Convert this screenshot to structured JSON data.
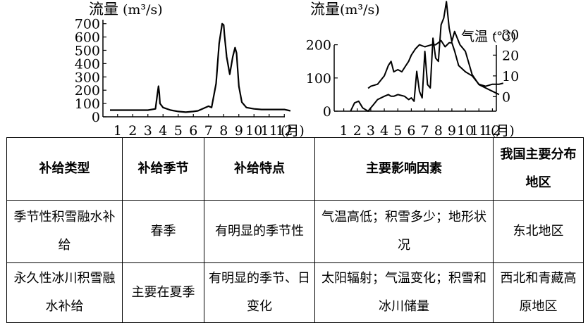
{
  "chart_data": [
    {
      "type": "line",
      "ylabel": "流量",
      "yunit": "(m³/s)",
      "xunit": "(月)",
      "yticks": [
        0,
        100,
        200,
        300,
        400,
        500,
        600,
        700
      ],
      "categories": [
        "1",
        "2",
        "3",
        "4",
        "5",
        "6",
        "7",
        "8",
        "9",
        "10",
        "11",
        "12"
      ],
      "ylim": [
        0,
        730
      ],
      "series": [
        {
          "x": [
            0.5,
            1,
            2,
            3,
            3.5,
            3.6,
            3.7,
            3.75,
            3.8,
            4,
            4.5,
            5,
            5.5,
            6,
            6.3,
            6.5,
            6.8,
            7,
            7.2,
            7.5,
            7.7,
            7.9,
            8,
            8.05,
            8.2,
            8.4,
            8.6,
            8.75,
            8.85,
            9,
            9.2,
            9.5,
            10,
            10.5,
            11,
            11.5,
            12,
            12.4
          ],
          "values": [
            50,
            50,
            50,
            50,
            60,
            150,
            230,
            180,
            100,
            70,
            50,
            40,
            35,
            40,
            45,
            55,
            70,
            80,
            70,
            250,
            550,
            700,
            690,
            620,
            450,
            320,
            450,
            520,
            480,
            230,
            110,
            70,
            60,
            55,
            55,
            55,
            55,
            45
          ]
        }
      ]
    },
    {
      "type": "line",
      "ylabel": "流量",
      "yunit": "(m³/s)",
      "y2label": "气温",
      "y2unit": "(℃)",
      "xunit": "(月)",
      "yticks": [
        0,
        100,
        200
      ],
      "y2ticks": [
        0,
        10,
        20,
        30
      ],
      "categories": [
        "1",
        "2",
        "3",
        "4",
        "5",
        "6",
        "7",
        "8",
        "9",
        "10",
        "11",
        "12"
      ],
      "ylim": [
        0,
        250
      ],
      "y2lim": [
        -7,
        33
      ],
      "series": [
        {
          "axis": "left",
          "x": [
            1.5,
            1.8,
            2.1,
            2.4,
            2.8,
            3,
            3.2,
            3.5,
            4,
            4.3,
            4.5,
            4.7,
            5,
            5.5,
            5.8,
            6,
            6.2,
            6.4,
            6.6,
            6.8,
            7,
            7.2,
            7.4,
            7.6,
            7.8,
            8,
            8.2,
            8.4,
            8.6,
            8.8,
            9,
            9.2,
            9.4,
            9.6,
            9.8,
            10,
            10.5,
            11,
            11.5,
            12,
            12.5
          ],
          "values": [
            0,
            25,
            30,
            10,
            0,
            10,
            20,
            35,
            45,
            50,
            45,
            45,
            50,
            45,
            35,
            40,
            30,
            120,
            60,
            40,
            180,
            80,
            70,
            220,
            160,
            150,
            260,
            280,
            330,
            250,
            210,
            240,
            220,
            200,
            190,
            180,
            110,
            80,
            70,
            60,
            50
          ]
        },
        {
          "axis": "right",
          "x": [
            2.8,
            3,
            3.5,
            4,
            4.3,
            4.5,
            4.7,
            5,
            5.3,
            5.5,
            5.8,
            6,
            6.3,
            6.6,
            7,
            7.5,
            7.8,
            8,
            8.2,
            8.5,
            8.8,
            9,
            9.2,
            9.5,
            10,
            10.5,
            11,
            11.5,
            12,
            12.5,
            12.8
          ],
          "values": [
            4,
            5,
            6,
            10,
            15,
            17,
            12,
            13,
            12,
            14,
            17,
            20,
            23,
            25,
            24,
            25,
            25,
            26,
            27,
            24,
            26,
            26,
            22,
            15,
            12,
            10,
            6,
            5,
            6,
            6,
            6.5
          ]
        }
      ]
    }
  ],
  "table": {
    "headers": [
      "补给类型",
      "补给季节",
      "补给特点",
      "主要影响因素",
      "我国主要分布地区"
    ],
    "rows": [
      [
        "季节性积雪融水补给",
        "春季",
        "有明显的季节性",
        "气温高低；积雪多少；地形状况",
        "东北地区"
      ],
      [
        "永久性冰川积雪融水补给",
        "主要在夏季",
        "有明显的季节、日变化",
        "太阳辐射；气温变化；积雪和冰川储量",
        "西北和青藏高原地区"
      ]
    ]
  }
}
